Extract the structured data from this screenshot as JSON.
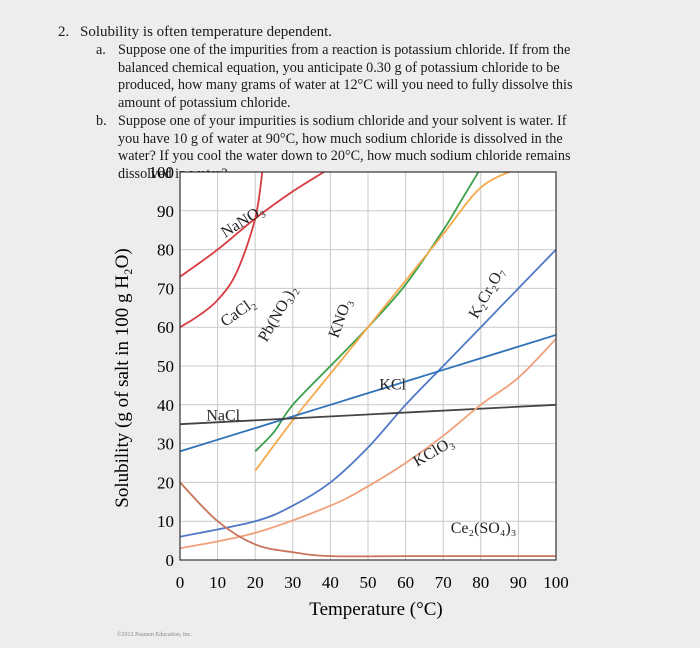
{
  "question": {
    "number": "2.",
    "stem": "Solubility is often temperature dependent.",
    "part_a": {
      "letter": "a.",
      "text": "Suppose one of the impurities from a reaction is potassium chloride. If from the balanced chemical equation, you anticipate 0.30 g of potassium chloride to be produced, how many grams of water at 12°C will you need to fully dissolve this amount of potassium chloride."
    },
    "part_b": {
      "letter": "b.",
      "text": "Suppose one of your impurities is sodium chloride and your solvent is water. If you have 10 g of water at 90°C, how much sodium chloride is dissolved in the water? If you cool the water down to 20°C, how much sodium chloride remains dissolved in water?"
    }
  },
  "credit": "©2012 Pearson Education, Inc.",
  "chart_data": {
    "type": "line",
    "xlabel": "Temperature (°C)",
    "ylabel": "Solubility (g of salt in 100 g H₂O)",
    "xlim": [
      0,
      100
    ],
    "ylim": [
      0,
      100
    ],
    "xticks": [
      "0",
      "10",
      "20",
      "30",
      "40",
      "50",
      "60",
      "70",
      "80",
      "90",
      "100"
    ],
    "yticks": [
      "0",
      "10",
      "20",
      "30",
      "40",
      "50",
      "60",
      "70",
      "80",
      "90",
      "100"
    ],
    "grid": true,
    "series": [
      {
        "name": "NaNO₃",
        "color": "#d93a3f",
        "x": [
          0,
          10,
          20,
          30,
          40
        ],
        "y": [
          73,
          80,
          88,
          95,
          101
        ]
      },
      {
        "name": "CaCl₂",
        "color": "#d93a3f",
        "x": [
          0,
          5,
          10,
          15,
          20,
          22
        ],
        "y": [
          60,
          63,
          67,
          74,
          88,
          101
        ]
      },
      {
        "name": "Pb(NO₃)₂",
        "color": "#3aa04a",
        "x": [
          20,
          25,
          30,
          40,
          50,
          60,
          70,
          75,
          80
        ],
        "y": [
          28,
          33,
          40,
          50,
          60,
          71,
          85,
          93,
          101
        ]
      },
      {
        "name": "KNO₃",
        "color": "#f5a94a",
        "x": [
          20,
          30,
          40,
          50,
          60,
          70,
          80,
          90
        ],
        "y": [
          23,
          36,
          48,
          60,
          72,
          84,
          96,
          101
        ]
      },
      {
        "name": "K₂Cr₂O₇",
        "color": "#5079c8",
        "x": [
          0,
          20,
          30,
          40,
          50,
          60,
          70,
          80,
          90,
          100
        ],
        "y": [
          6,
          10,
          14,
          20,
          29,
          40,
          50,
          60,
          70,
          80
        ]
      },
      {
        "name": "KCl",
        "color": "#2e72b8",
        "x": [
          0,
          20,
          40,
          60,
          80,
          100
        ],
        "y": [
          28,
          34,
          40,
          46,
          52,
          58
        ]
      },
      {
        "name": "NaCl",
        "color": "#444444",
        "x": [
          0,
          100
        ],
        "y": [
          35,
          40
        ]
      },
      {
        "name": "KClO₃",
        "color": "#f0a07a",
        "x": [
          0,
          20,
          40,
          50,
          60,
          70,
          80,
          90,
          100
        ],
        "y": [
          3,
          7,
          14,
          19,
          25,
          32,
          40,
          47,
          57
        ]
      },
      {
        "name": "Ce₂(SO₄)₃",
        "color": "#c8735a",
        "x": [
          0,
          10,
          20,
          30,
          40,
          60,
          80,
          100
        ],
        "y": [
          20,
          10,
          4,
          2,
          1,
          1,
          1,
          1
        ]
      }
    ],
    "curve_labels": [
      {
        "text": "NaNO₃",
        "x": 12,
        "y": 83,
        "rotate": -32
      },
      {
        "text": "CaCl₂",
        "x": 12,
        "y": 60,
        "rotate": -35
      },
      {
        "text": "Pb(NO₃)₂",
        "x": 23,
        "y": 56,
        "rotate": -60
      },
      {
        "text": "KNO₃",
        "x": 42,
        "y": 57,
        "rotate": -70
      },
      {
        "text": "K₂Cr₂O₇",
        "x": 79,
        "y": 62,
        "rotate": -60
      },
      {
        "text": "KCl",
        "x": 53,
        "y": 44,
        "rotate": 0
      },
      {
        "text": "NaCl",
        "x": 7,
        "y": 36,
        "rotate": 0
      },
      {
        "text": "KClO₃",
        "x": 63,
        "y": 24,
        "rotate": -30
      },
      {
        "text": "Ce₂(SO₄)₃",
        "x": 72,
        "y": 7,
        "rotate": 0
      }
    ]
  }
}
